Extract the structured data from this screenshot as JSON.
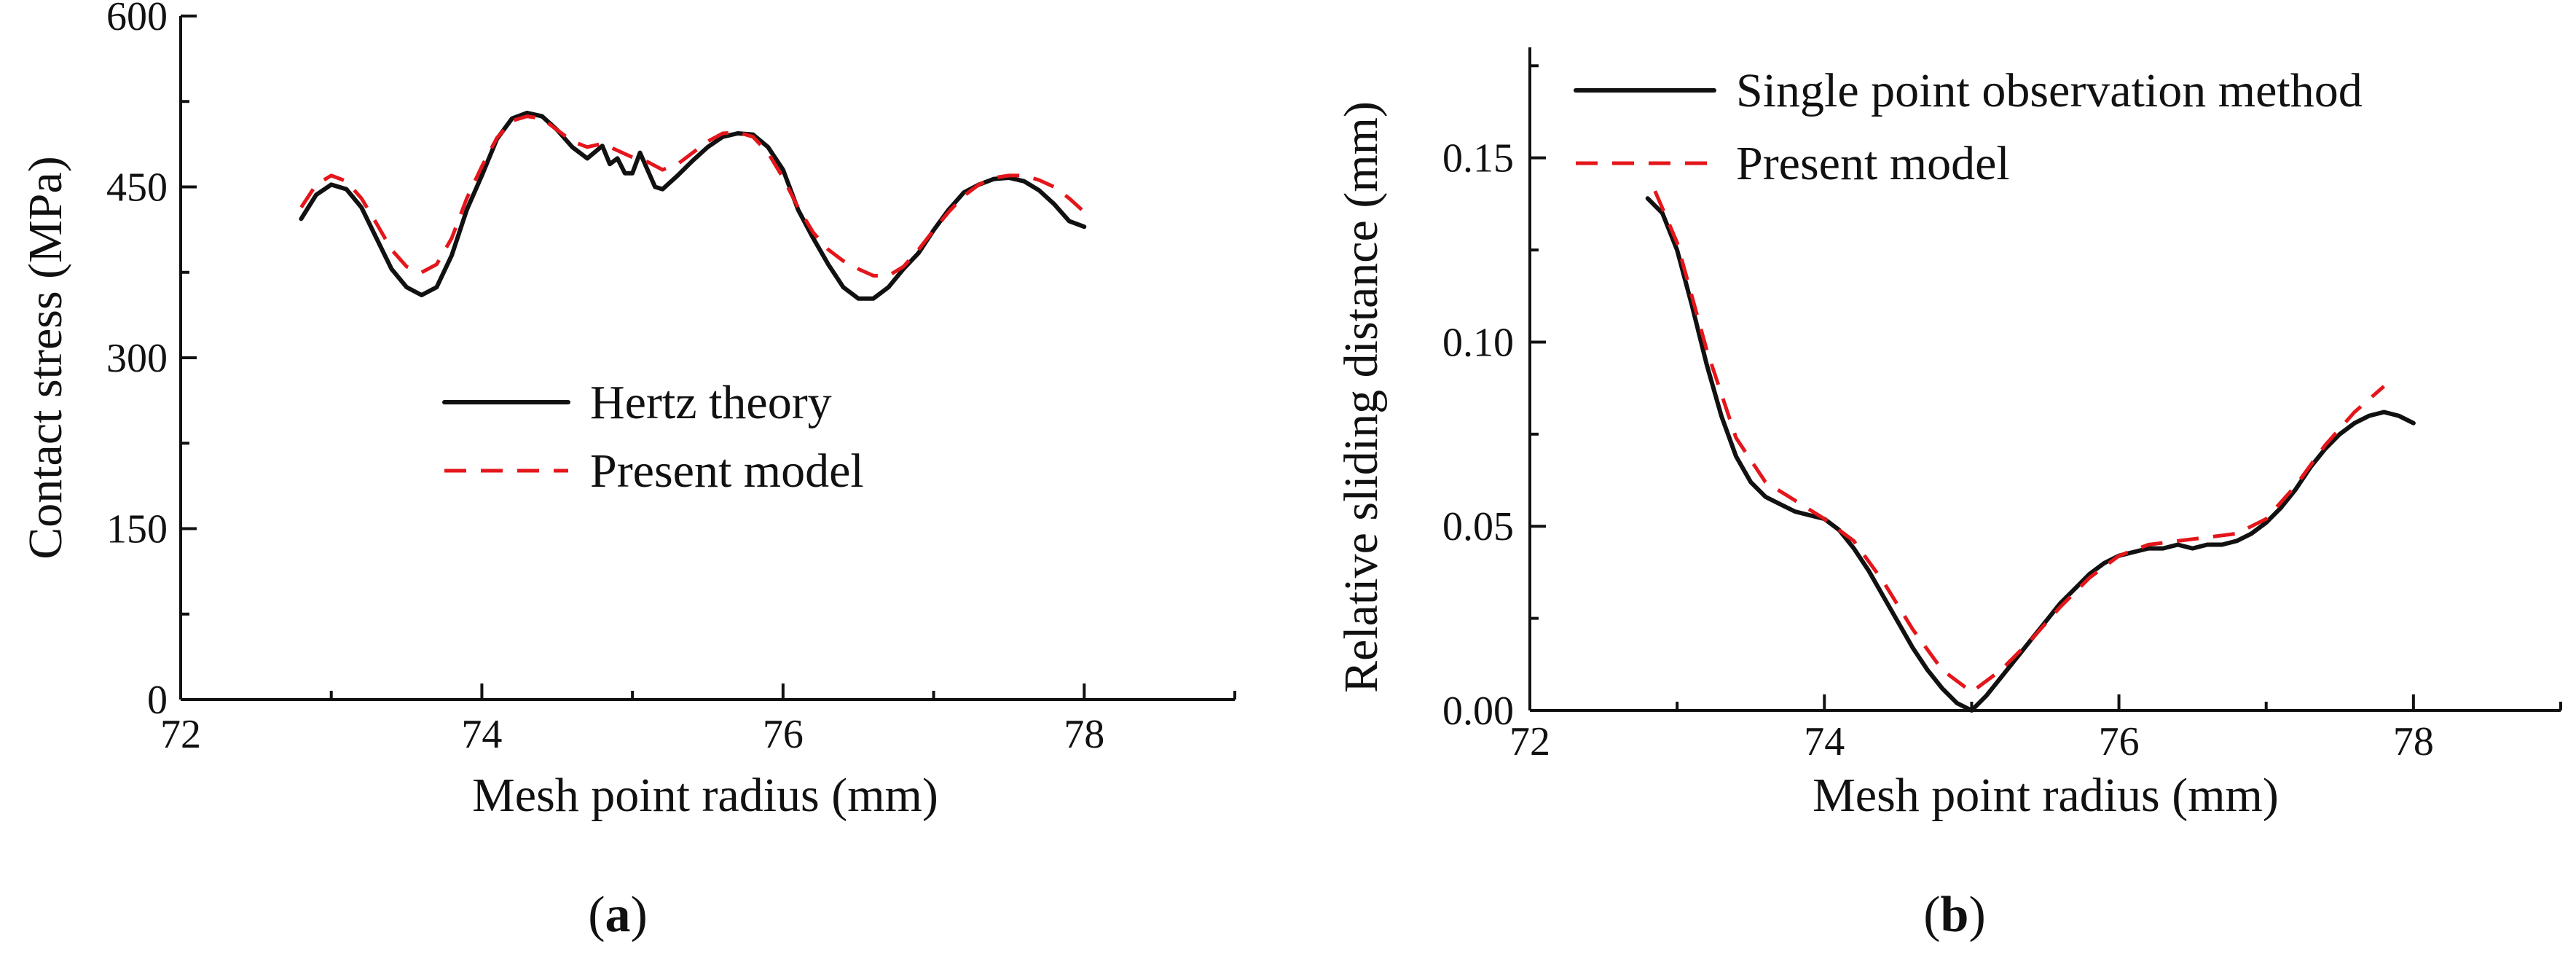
{
  "chart_data": [
    {
      "type": "line",
      "panel_label": "(a)",
      "panel_letter": "a",
      "xlabel": "Mesh point radius (mm)",
      "ylabel": "Contact stress (MPa)",
      "xlim": [
        72,
        79
      ],
      "ylim": [
        0,
        600
      ],
      "xticks": [
        72,
        74,
        76,
        78
      ],
      "xtick_labels": [
        "72",
        "74",
        "76",
        "78"
      ],
      "yticks": [
        0,
        150,
        300,
        450,
        600
      ],
      "ytick_labels": [
        "0",
        "150",
        "300",
        "450",
        "600"
      ],
      "legend_position": "center",
      "series": [
        {
          "name": "Hertz theory",
          "style": "solid",
          "color": "#111111",
          "x": [
            72.8,
            72.9,
            73.0,
            73.1,
            73.2,
            73.3,
            73.4,
            73.5,
            73.6,
            73.7,
            73.8,
            73.9,
            74.0,
            74.1,
            74.2,
            74.3,
            74.4,
            74.5,
            74.6,
            74.7,
            74.8,
            74.85,
            74.9,
            74.95,
            75.0,
            75.05,
            75.1,
            75.15,
            75.2,
            75.3,
            75.4,
            75.5,
            75.6,
            75.7,
            75.8,
            75.9,
            76.0,
            76.1,
            76.2,
            76.3,
            76.4,
            76.5,
            76.6,
            76.7,
            76.8,
            76.9,
            77.0,
            77.1,
            77.2,
            77.3,
            77.4,
            77.5,
            77.6,
            77.7,
            77.8,
            77.9,
            78.0
          ],
          "values": [
            422,
            443,
            452,
            448,
            432,
            405,
            378,
            362,
            355,
            362,
            390,
            430,
            460,
            492,
            510,
            515,
            512,
            500,
            485,
            475,
            486,
            470,
            475,
            462,
            462,
            480,
            465,
            450,
            448,
            460,
            473,
            485,
            494,
            497,
            496,
            485,
            465,
            430,
            405,
            382,
            362,
            352,
            352,
            362,
            378,
            392,
            412,
            430,
            445,
            452,
            457,
            458,
            455,
            447,
            435,
            420,
            415
          ]
        },
        {
          "name": "Present model",
          "style": "dashed",
          "color": "#e4161b",
          "x": [
            72.8,
            72.9,
            73.0,
            73.1,
            73.2,
            73.3,
            73.4,
            73.5,
            73.6,
            73.7,
            73.8,
            73.9,
            74.0,
            74.1,
            74.2,
            74.3,
            74.4,
            74.5,
            74.6,
            74.7,
            74.8,
            74.9,
            75.0,
            75.1,
            75.2,
            75.3,
            75.4,
            75.5,
            75.6,
            75.7,
            75.8,
            75.9,
            76.0,
            76.1,
            76.2,
            76.3,
            76.4,
            76.5,
            76.6,
            76.7,
            76.8,
            76.9,
            77.0,
            77.1,
            77.2,
            77.3,
            77.4,
            77.5,
            77.6,
            77.7,
            77.8,
            77.9,
            78.0
          ],
          "values": [
            432,
            452,
            460,
            455,
            440,
            418,
            395,
            380,
            375,
            382,
            405,
            440,
            468,
            493,
            508,
            512,
            510,
            500,
            490,
            485,
            488,
            482,
            476,
            472,
            465,
            470,
            480,
            490,
            497,
            498,
            494,
            480,
            458,
            432,
            410,
            395,
            385,
            378,
            372,
            372,
            380,
            395,
            412,
            428,
            442,
            452,
            458,
            460,
            460,
            456,
            450,
            440,
            428
          ]
        }
      ]
    },
    {
      "type": "line",
      "panel_label": "(b)",
      "panel_letter": "b",
      "xlabel": "Mesh point radius (mm)",
      "ylabel": "Relative sliding distance (mm)",
      "xlim": [
        72,
        79
      ],
      "ylim": [
        0,
        0.18
      ],
      "xticks": [
        72,
        74,
        76,
        78
      ],
      "xtick_labels": [
        "72",
        "74",
        "76",
        "78"
      ],
      "yticks": [
        0,
        0.05,
        0.1,
        0.15
      ],
      "ytick_labels": [
        "0.00",
        "0.05",
        "0.10",
        "0.15"
      ],
      "legend_position": "top-left",
      "series": [
        {
          "name": "Single point observation method",
          "style": "solid",
          "color": "#111111",
          "x": [
            72.8,
            72.9,
            73.0,
            73.1,
            73.2,
            73.3,
            73.4,
            73.5,
            73.6,
            73.7,
            73.8,
            73.9,
            74.0,
            74.1,
            74.2,
            74.3,
            74.4,
            74.5,
            74.6,
            74.7,
            74.8,
            74.9,
            75.0,
            75.1,
            75.2,
            75.3,
            75.4,
            75.5,
            75.6,
            75.7,
            75.8,
            75.9,
            76.0,
            76.1,
            76.2,
            76.3,
            76.4,
            76.5,
            76.6,
            76.7,
            76.8,
            76.9,
            77.0,
            77.1,
            77.2,
            77.3,
            77.4,
            77.5,
            77.6,
            77.7,
            77.8,
            77.9,
            78.0
          ],
          "values": [
            0.139,
            0.135,
            0.125,
            0.11,
            0.094,
            0.08,
            0.069,
            0.062,
            0.058,
            0.056,
            0.054,
            0.053,
            0.052,
            0.049,
            0.044,
            0.038,
            0.031,
            0.024,
            0.017,
            0.011,
            0.006,
            0.002,
            0.0,
            0.004,
            0.009,
            0.014,
            0.019,
            0.024,
            0.029,
            0.033,
            0.037,
            0.04,
            0.042,
            0.043,
            0.044,
            0.044,
            0.045,
            0.044,
            0.045,
            0.045,
            0.046,
            0.048,
            0.051,
            0.055,
            0.06,
            0.066,
            0.071,
            0.075,
            0.078,
            0.08,
            0.081,
            0.08,
            0.078
          ]
        },
        {
          "name": "Present model",
          "style": "dashed",
          "color": "#e4161b",
          "x": [
            72.85,
            73.0,
            73.2,
            73.4,
            73.6,
            73.8,
            74.0,
            74.2,
            74.4,
            74.6,
            74.8,
            75.0,
            75.2,
            75.4,
            75.6,
            75.8,
            76.0,
            76.2,
            76.4,
            76.6,
            76.8,
            77.0,
            77.2,
            77.4,
            77.6,
            77.8
          ],
          "values": [
            0.141,
            0.127,
            0.098,
            0.074,
            0.062,
            0.057,
            0.052,
            0.046,
            0.035,
            0.022,
            0.011,
            0.005,
            0.011,
            0.019,
            0.028,
            0.036,
            0.042,
            0.045,
            0.046,
            0.047,
            0.048,
            0.052,
            0.061,
            0.072,
            0.081,
            0.088
          ]
        }
      ]
    }
  ]
}
